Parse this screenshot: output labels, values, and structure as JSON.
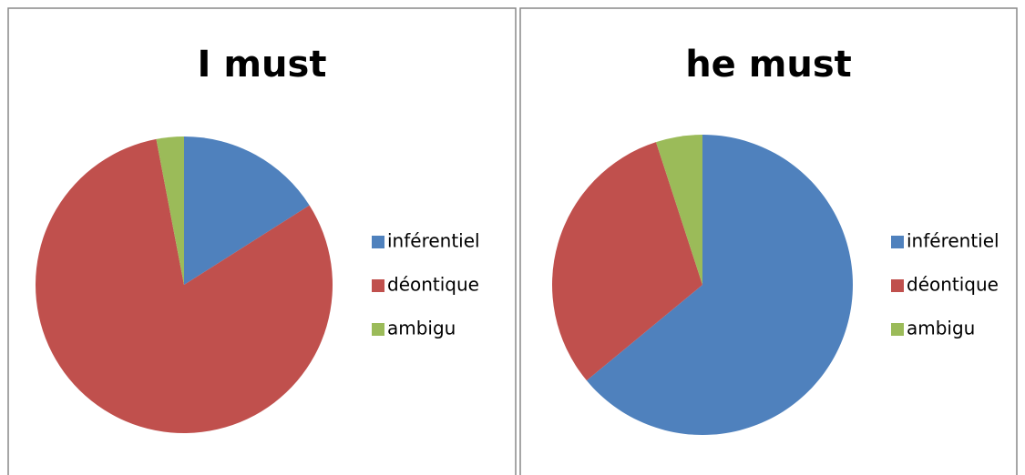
{
  "chart_data": [
    {
      "type": "pie",
      "title": "I must",
      "categories": [
        "inférentiel",
        "déontique",
        "ambigu"
      ],
      "values": [
        16,
        81,
        3
      ],
      "colors": [
        "#4f81bd",
        "#c0504d",
        "#9bbb59"
      ]
    },
    {
      "type": "pie",
      "title": "he must",
      "categories": [
        "inférentiel",
        "déontique",
        "ambigu"
      ],
      "values": [
        64,
        31,
        5
      ],
      "colors": [
        "#4f81bd",
        "#c0504d",
        "#9bbb59"
      ]
    }
  ]
}
